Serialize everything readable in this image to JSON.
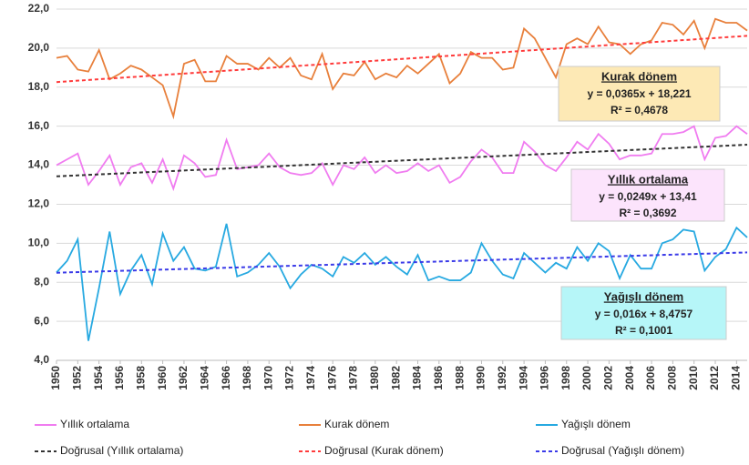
{
  "chart_data": {
    "type": "line",
    "x": [
      1950,
      1951,
      1952,
      1953,
      1954,
      1955,
      1956,
      1957,
      1958,
      1959,
      1960,
      1961,
      1962,
      1963,
      1964,
      1965,
      1966,
      1967,
      1968,
      1969,
      1970,
      1971,
      1972,
      1973,
      1974,
      1975,
      1976,
      1977,
      1978,
      1979,
      1980,
      1981,
      1982,
      1983,
      1984,
      1985,
      1986,
      1987,
      1988,
      1989,
      1990,
      1991,
      1992,
      1993,
      1994,
      1995,
      1996,
      1997,
      1998,
      1999,
      2000,
      2001,
      2002,
      2003,
      2004,
      2005,
      2006,
      2007,
      2008,
      2009,
      2010,
      2011,
      2012,
      2013,
      2014,
      2015
    ],
    "xlim": [
      1950,
      2015
    ],
    "xticks": [
      1950,
      1952,
      1954,
      1956,
      1958,
      1960,
      1962,
      1964,
      1966,
      1968,
      1970,
      1972,
      1974,
      1976,
      1978,
      1980,
      1982,
      1984,
      1986,
      1988,
      1990,
      1992,
      1994,
      1996,
      1998,
      2000,
      2002,
      2004,
      2006,
      2008,
      2010,
      2012,
      2014
    ],
    "ylim": [
      4,
      22
    ],
    "yticks": [
      {
        "value": 4,
        "label": "4,0"
      },
      {
        "value": 6,
        "label": "6,0"
      },
      {
        "value": 8,
        "label": "8,0"
      },
      {
        "value": 10,
        "label": "10,0"
      },
      {
        "value": 12,
        "label": "12,0"
      },
      {
        "value": 14,
        "label": "14,0"
      },
      {
        "value": 16,
        "label": "16,0"
      },
      {
        "value": 18,
        "label": "18,0"
      },
      {
        "value": 20,
        "label": "20,0"
      },
      {
        "value": 22,
        "label": "22,0"
      }
    ],
    "grid": true,
    "legend": "bottom",
    "series": [
      {
        "name": "Yıllık ortalama",
        "color": "#f07cf0",
        "style": "solid",
        "values": [
          14.0,
          14.3,
          14.6,
          13.0,
          13.7,
          14.5,
          13.0,
          13.9,
          14.1,
          13.1,
          14.3,
          12.8,
          14.5,
          14.1,
          13.4,
          13.5,
          15.3,
          13.8,
          13.9,
          14.0,
          14.6,
          13.9,
          13.6,
          13.5,
          13.6,
          14.1,
          13.0,
          14.0,
          13.8,
          14.4,
          13.6,
          14.0,
          13.6,
          13.7,
          14.1,
          13.7,
          14.0,
          13.1,
          13.4,
          14.2,
          14.8,
          14.4,
          13.6,
          13.6,
          15.2,
          14.7,
          14.0,
          13.7,
          14.4,
          15.2,
          14.8,
          15.6,
          15.1,
          14.3,
          14.5,
          14.5,
          14.6,
          15.6,
          15.6,
          15.7,
          16.0,
          14.3,
          15.4,
          15.5,
          16.0,
          15.6
        ]
      },
      {
        "name": "Kurak dönem",
        "color": "#e8803c",
        "style": "solid",
        "values": [
          19.5,
          19.6,
          18.9,
          18.8,
          19.9,
          18.4,
          18.7,
          19.1,
          18.9,
          18.5,
          18.1,
          16.5,
          19.2,
          19.4,
          18.3,
          18.3,
          19.6,
          19.2,
          19.2,
          18.9,
          19.5,
          19.0,
          19.5,
          18.6,
          18.4,
          19.7,
          17.9,
          18.7,
          18.6,
          19.3,
          18.4,
          18.7,
          18.5,
          19.1,
          18.7,
          19.2,
          19.7,
          18.2,
          18.7,
          19.8,
          19.5,
          19.5,
          18.9,
          19.0,
          21.0,
          20.5,
          19.5,
          18.5,
          20.2,
          20.5,
          20.2,
          21.1,
          20.3,
          20.2,
          19.7,
          20.2,
          20.4,
          21.3,
          21.2,
          20.7,
          21.4,
          20.0,
          21.5,
          21.3,
          21.3,
          20.9
        ]
      },
      {
        "name": "Yağışlı dönem",
        "color": "#27a9e1",
        "style": "solid",
        "values": [
          8.5,
          9.1,
          10.2,
          5.0,
          7.7,
          10.6,
          7.4,
          8.6,
          9.4,
          7.9,
          10.5,
          9.1,
          9.8,
          8.7,
          8.6,
          8.8,
          11.0,
          8.3,
          8.5,
          8.9,
          9.5,
          8.8,
          7.7,
          8.4,
          8.9,
          8.7,
          8.3,
          9.3,
          9.0,
          9.5,
          8.9,
          9.3,
          8.8,
          8.4,
          9.4,
          8.1,
          8.3,
          8.1,
          8.1,
          8.5,
          10.0,
          9.1,
          8.4,
          8.2,
          9.5,
          9.0,
          8.5,
          9.0,
          8.7,
          9.8,
          9.1,
          10.0,
          9.6,
          8.2,
          9.4,
          8.7,
          8.7,
          10.0,
          10.2,
          10.7,
          10.6,
          8.6,
          9.3,
          9.7,
          10.8,
          10.3
        ]
      },
      {
        "name": "Doğrusal (Yıllık ortalama)",
        "color": "#333333",
        "style": "dashed",
        "x": [
          1950,
          2015
        ],
        "values": [
          13.43,
          15.05
        ]
      },
      {
        "name": "Doğrusal (Kurak dönem)",
        "color": "#ff3b3b",
        "style": "dashed",
        "x": [
          1950,
          2015
        ],
        "values": [
          18.26,
          20.63
        ]
      },
      {
        "name": "Doğrusal (Yağışlı dönem)",
        "color": "#3a3ae8",
        "style": "dashed",
        "x": [
          1950,
          2015
        ],
        "values": [
          8.49,
          9.53
        ]
      }
    ],
    "annotations": [
      {
        "title": "Kurak dönem",
        "equation": "y = 0,0365x + 18,221",
        "r2": "R² = 0,4678",
        "color": "#fde9b5"
      },
      {
        "title": "Yıllık ortalama",
        "equation": "y = 0,0249x + 13,41",
        "r2": "R² = 0,3692",
        "color": "#fce4fc"
      },
      {
        "title": "Yağışlı dönem",
        "equation": "y = 0,016x + 8,4757",
        "r2": "R² = 0,1001",
        "color": "#b6f6f8"
      }
    ]
  }
}
